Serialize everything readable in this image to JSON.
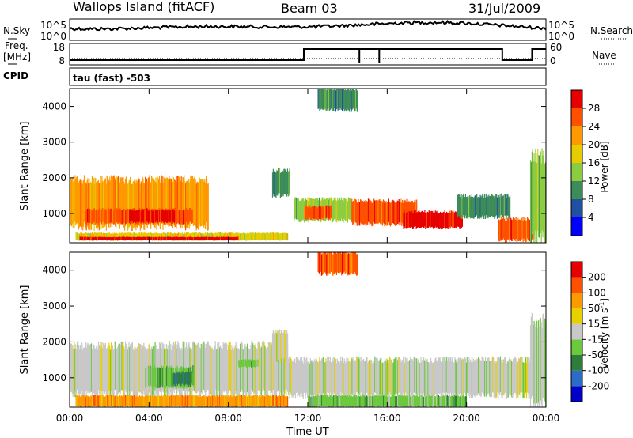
{
  "header": {
    "site": "Wallops Island (fitACF)",
    "beam": "Beam 03",
    "date": "31/Jul/2009"
  },
  "noise_panel": {
    "left_label": "N.Sky",
    "right_label": "N.Search",
    "left_ticks": [
      "10^5",
      "10^0"
    ],
    "right_ticks": [
      "10^5",
      "10^0"
    ]
  },
  "freq_panel": {
    "left_label_1": "Freq.",
    "left_label_2": "[MHz]",
    "right_label": "Nave",
    "left_ticks": [
      "18",
      "8"
    ],
    "right_ticks": [
      "60",
      "0"
    ]
  },
  "cpid": {
    "label": "CPID",
    "value": "tau (fast) -503"
  },
  "colors": {
    "power": [
      "#0000ff",
      "#2050a0",
      "#3c8c5a",
      "#8ccc40",
      "#e6cc00",
      "#ff9900",
      "#ff5000",
      "#e60000"
    ],
    "velocity": [
      "#0000c8",
      "#2a6cc8",
      "#2f7d3a",
      "#6cc83c",
      "#c8c8c8",
      "#e6d000",
      "#ff9900",
      "#ff5000",
      "#e60000"
    ]
  },
  "chart_data": [
    {
      "type": "heatmap",
      "name": "power",
      "ylabel": "Slant Range [km]",
      "colorbar_label": "Power [dB]",
      "colorbar_ticks": [
        "28",
        "24",
        "20",
        "16",
        "12",
        "8",
        "4"
      ],
      "colorbar_tick_values": [
        28,
        24,
        20,
        16,
        12,
        8,
        4
      ],
      "colorbar_range": [
        0,
        32
      ],
      "xlim": [
        0,
        24
      ],
      "ylim": [
        180,
        4500
      ],
      "yticks": [
        1000,
        2000,
        3000,
        4000
      ],
      "xticks": [
        0,
        4,
        8,
        12,
        16,
        20,
        24
      ],
      "regions": [
        {
          "t0": 0.0,
          "t1": 7.0,
          "r0": 640,
          "r1": 1950,
          "level": 5
        },
        {
          "t0": 0.8,
          "t1": 6.2,
          "r0": 730,
          "r1": 1120,
          "level": 6
        },
        {
          "t0": 3.0,
          "t1": 5.3,
          "r0": 760,
          "r1": 1100,
          "level": 7
        },
        {
          "t0": 0.3,
          "t1": 11.0,
          "r0": 250,
          "r1": 450,
          "level": 4
        },
        {
          "t0": 0.5,
          "t1": 8.5,
          "r0": 250,
          "r1": 340,
          "level": 7
        },
        {
          "t0": 10.2,
          "t1": 11.1,
          "r0": 1500,
          "r1": 2200,
          "level": 2
        },
        {
          "t0": 11.3,
          "t1": 14.2,
          "r0": 800,
          "r1": 1400,
          "level": 3
        },
        {
          "t0": 11.8,
          "t1": 13.2,
          "r0": 850,
          "r1": 1200,
          "level": 6
        },
        {
          "t0": 14.2,
          "t1": 17.5,
          "r0": 700,
          "r1": 1350,
          "level": 6
        },
        {
          "t0": 16.8,
          "t1": 19.8,
          "r0": 600,
          "r1": 1050,
          "level": 7
        },
        {
          "t0": 19.5,
          "t1": 22.2,
          "r0": 900,
          "r1": 1500,
          "level": 2
        },
        {
          "t0": 21.6,
          "t1": 23.4,
          "r0": 250,
          "r1": 850,
          "level": 6
        },
        {
          "t0": 23.2,
          "t1": 24.0,
          "r0": 300,
          "r1": 2600,
          "level": 3
        },
        {
          "t0": 12.5,
          "t1": 14.5,
          "r0": 3900,
          "r1": 4500,
          "level": 2
        }
      ]
    },
    {
      "type": "heatmap",
      "name": "velocity",
      "ylabel": "Slant Range [km]",
      "xlabel": "Time UT",
      "colorbar_label": "Velocity [m s",
      "colorbar_label_sup": "-1",
      "colorbar_label_end": "]",
      "colorbar_ticks": [
        "200",
        "100",
        "50",
        "15",
        "-15",
        "-50",
        "-100",
        "-200"
      ],
      "colorbar_tick_values": [
        200,
        100,
        50,
        15,
        -15,
        -50,
        -100,
        -200
      ],
      "xlim": [
        0,
        24
      ],
      "ylim": [
        180,
        4500
      ],
      "yticks": [
        1000,
        2000,
        3000,
        4000
      ],
      "xtick_labels": [
        "00:00",
        "04:00",
        "08:00",
        "12:00",
        "16:00",
        "20:00",
        "00:00"
      ],
      "regions": [
        {
          "t0": 0.0,
          "t1": 11.0,
          "r0": 550,
          "r1": 1900,
          "level": 4
        },
        {
          "t0": 3.8,
          "t1": 6.3,
          "r0": 750,
          "r1": 1300,
          "level": 3
        },
        {
          "t0": 5.2,
          "t1": 6.2,
          "r0": 800,
          "r1": 1150,
          "level": 2
        },
        {
          "t0": 8.5,
          "t1": 9.5,
          "r0": 1300,
          "r1": 1500,
          "level": 3
        },
        {
          "t0": 0.3,
          "t1": 11.0,
          "r0": 200,
          "r1": 500,
          "level": 6
        },
        {
          "t0": 11.0,
          "t1": 24.0,
          "r0": 500,
          "r1": 1500,
          "level": 4
        },
        {
          "t0": 10.2,
          "t1": 11.0,
          "r0": 1500,
          "r1": 2300,
          "level": 4
        },
        {
          "t0": 12.0,
          "t1": 20.0,
          "r0": 200,
          "r1": 500,
          "level": 3
        },
        {
          "t0": 23.2,
          "t1": 24.0,
          "r0": 300,
          "r1": 2600,
          "level": 4
        },
        {
          "t0": 12.5,
          "t1": 14.5,
          "r0": 3900,
          "r1": 4500,
          "level": 7
        }
      ]
    }
  ]
}
